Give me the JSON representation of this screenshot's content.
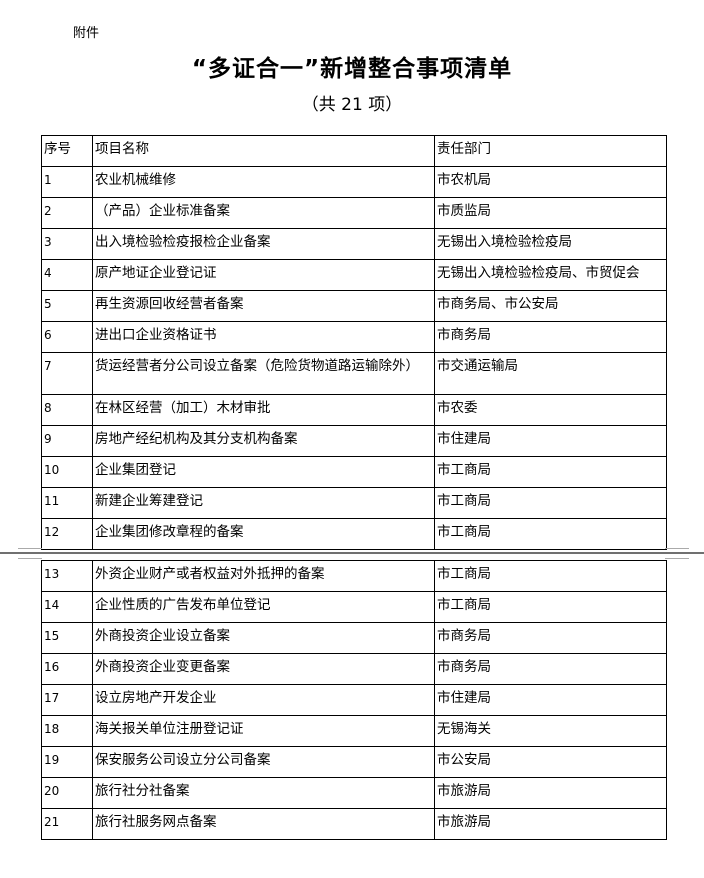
{
  "attachment_label": "附件",
  "title": "“多证合一”新增整合事项清单",
  "subtitle": "（共 21 项）",
  "table": {
    "headers": [
      "序号",
      "项目名称",
      "责任部门"
    ],
    "rows": [
      [
        "1",
        "农业机械维修",
        "市农机局"
      ],
      [
        "2",
        "（产品）企业标准备案",
        "市质监局"
      ],
      [
        "3",
        "出入境检验检疫报检企业备案",
        "无锡出入境检验检疫局"
      ],
      [
        "4",
        "原产地证企业登记证",
        "无锡出入境检验检疫局、市贸促会"
      ],
      [
        "5",
        "再生资源回收经营者备案",
        "市商务局、市公安局"
      ],
      [
        "6",
        "进出口企业资格证书",
        "市商务局"
      ],
      [
        "7",
        "货运经营者分公司设立备案（危险货物道路运输除外）",
        "市交通运输局"
      ],
      [
        "8",
        "在林区经营（加工）木材审批",
        "市农委"
      ],
      [
        "9",
        "房地产经纪机构及其分支机构备案",
        "市住建局"
      ],
      [
        "10",
        "企业集团登记",
        "市工商局"
      ],
      [
        "11",
        "新建企业筹建登记",
        "市工商局"
      ],
      [
        "12",
        "企业集团修改章程的备案",
        "市工商局"
      ],
      [
        "13",
        "外资企业财产或者权益对外抵押的备案",
        "市工商局"
      ],
      [
        "14",
        "企业性质的广告发布单位登记",
        "市工商局"
      ],
      [
        "15",
        "外商投资企业设立备案",
        "市商务局"
      ],
      [
        "16",
        "外商投资企业变更备案",
        "市商务局"
      ],
      [
        "17",
        "设立房地产开发企业",
        "市住建局"
      ],
      [
        "18",
        "海关报关单位注册登记证",
        "无锡海关"
      ],
      [
        "19",
        "保安服务公司设立分公司备案",
        "市公安局"
      ],
      [
        "20",
        "旅行社分社备案",
        "市旅游局"
      ],
      [
        "21",
        "旅行社服务网点备案",
        "市旅游局"
      ]
    ]
  }
}
